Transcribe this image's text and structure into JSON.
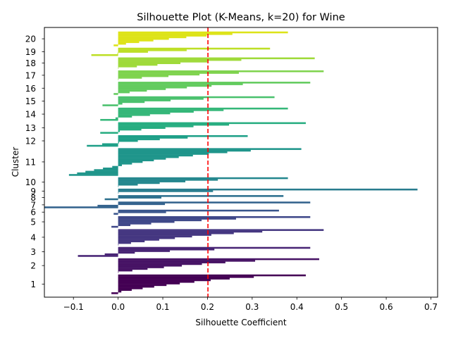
{
  "chart_data": {
    "type": "silhouette",
    "title": "Silhouette Plot (K-Means, k=20) for Wine",
    "xlabel": "Silhouette Coefficient",
    "ylabel": "Cluster",
    "xlim": [
      -0.165,
      0.715
    ],
    "xticks": [
      -0.1,
      0.0,
      0.1,
      0.2,
      0.3,
      0.4,
      0.5,
      0.6,
      0.7
    ],
    "xtick_labels": [
      "−0.1",
      "0.0",
      "0.1",
      "0.2",
      "0.3",
      "0.4",
      "0.5",
      "0.6",
      "0.7"
    ],
    "grid": false,
    "average_silhouette": 0.201,
    "average_line_color": "#ff0000",
    "colormap": "viridis",
    "clusters": [
      {
        "label": "1",
        "n": 12,
        "max": 0.42,
        "min": -0.015,
        "color": "#440154"
      },
      {
        "label": "2",
        "n": 9,
        "max": 0.45,
        "min": 0.0,
        "color": "#471365"
      },
      {
        "label": "3",
        "n": 6,
        "max": 0.43,
        "min": -0.09,
        "color": "#482475"
      },
      {
        "label": "4",
        "n": 10,
        "max": 0.46,
        "min": 0.0,
        "color": "#453781"
      },
      {
        "label": "5",
        "n": 7,
        "max": 0.43,
        "min": -0.015,
        "color": "#3f4889"
      },
      {
        "label": "6",
        "n": 3,
        "max": 0.36,
        "min": -0.01,
        "color": "#39558c"
      },
      {
        "label": "7",
        "n": 4,
        "max": 0.43,
        "min": -0.165,
        "color": "#33628d"
      },
      {
        "label": "8",
        "n": 3,
        "max": 0.37,
        "min": -0.03,
        "color": "#2d708e"
      },
      {
        "label": "9",
        "n": 3,
        "max": 0.67,
        "min": 0.0,
        "color": "#287c8e"
      },
      {
        "label": "10",
        "n": 6,
        "max": 0.38,
        "min": 0.0,
        "color": "#24878e"
      },
      {
        "label": "11",
        "n": 17,
        "max": 0.41,
        "min": -0.11,
        "color": "#1f958b"
      },
      {
        "label": "12",
        "n": 7,
        "max": 0.29,
        "min": -0.07,
        "color": "#1fa088"
      },
      {
        "label": "13",
        "n": 7,
        "max": 0.42,
        "min": -0.04,
        "color": "#27ad81"
      },
      {
        "label": "14",
        "n": 8,
        "max": 0.38,
        "min": -0.04,
        "color": "#35b779"
      },
      {
        "label": "15",
        "n": 6,
        "max": 0.35,
        "min": -0.035,
        "color": "#4ac16d"
      },
      {
        "label": "16",
        "n": 8,
        "max": 0.43,
        "min": -0.01,
        "color": "#63cb5f"
      },
      {
        "label": "17",
        "n": 6,
        "max": 0.46,
        "min": 0.0,
        "color": "#7fd34e"
      },
      {
        "label": "18",
        "n": 7,
        "max": 0.44,
        "min": 0.0,
        "color": "#9fda3a"
      },
      {
        "label": "19",
        "n": 5,
        "max": 0.34,
        "min": -0.06,
        "color": "#bddf26"
      },
      {
        "label": "20",
        "n": 9,
        "max": 0.38,
        "min": -0.01,
        "color": "#dde318"
      }
    ]
  }
}
